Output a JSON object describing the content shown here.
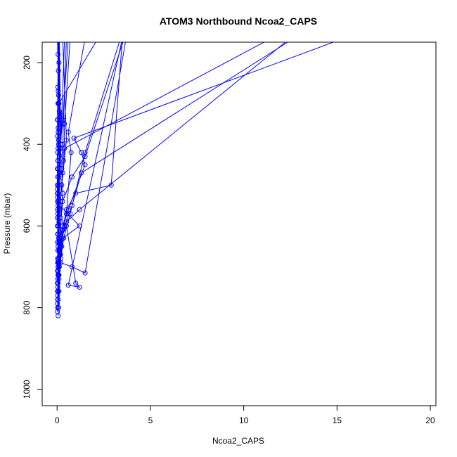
{
  "chart_data": {
    "type": "line",
    "title": "ATOM3 Northbound Ncoa2_CAPS",
    "xlabel": "Ncoa2_CAPS",
    "ylabel": "Pressure (mbar)",
    "xlim": [
      -0.8,
      20.3
    ],
    "ylim": [
      1040,
      150
    ],
    "y_reversed": true,
    "x_ticks": [
      0,
      5,
      10,
      15,
      20
    ],
    "y_ticks": [
      200,
      400,
      600,
      800,
      1000
    ],
    "grid": false,
    "color": "#0000ff",
    "marker": "open-circle",
    "series": [
      {
        "x": [
          0.05,
          0.08,
          0.1,
          0.12,
          0.25,
          0.1,
          0.05,
          0.15,
          0.08,
          0.3,
          0.1,
          2.2
        ],
        "y": [
          820,
          800,
          760,
          700,
          650,
          580,
          520,
          450,
          400,
          350,
          300,
          140
        ]
      },
      {
        "x": [
          0.02,
          0.03,
          0.05,
          0.08,
          0.1,
          0.2,
          0.3,
          0.8,
          1.5,
          3.6
        ],
        "y": [
          810,
          780,
          740,
          690,
          640,
          590,
          540,
          480,
          430,
          140
        ]
      },
      {
        "x": [
          0.03,
          0.05,
          0.1,
          0.18,
          0.3,
          0.5,
          1.0,
          2.9,
          3.5
        ],
        "y": [
          800,
          760,
          720,
          670,
          610,
          560,
          520,
          500,
          140
        ]
      },
      {
        "x": [
          0.02,
          0.05,
          0.1,
          0.2,
          0.5,
          1.2,
          12.5
        ],
        "y": [
          790,
          740,
          690,
          640,
          590,
          560,
          140
        ]
      },
      {
        "x": [
          0.05,
          0.1,
          0.2,
          0.35,
          0.7,
          1.5,
          3.4
        ],
        "y": [
          780,
          730,
          680,
          630,
          570,
          420,
          140
        ]
      },
      {
        "x": [
          0.03,
          0.08,
          0.15,
          0.3,
          1.2,
          0.15,
          0.3,
          0.4,
          11.5
        ],
        "y": [
          770,
          720,
          670,
          630,
          600,
          550,
          470,
          410,
          140
        ]
      },
      {
        "x": [
          0.02,
          0.06,
          0.12,
          0.25,
          0.6,
          1.5,
          1.3,
          0.9,
          15.4
        ],
        "y": [
          760,
          710,
          660,
          610,
          560,
          450,
          420,
          385,
          140
        ]
      },
      {
        "x": [
          0.04,
          0.1,
          0.2,
          0.4,
          0.8,
          1.3,
          12.7
        ],
        "y": [
          750,
          700,
          650,
          600,
          550,
          470,
          140
        ]
      },
      {
        "x": [
          0.02,
          0.05,
          0.1,
          0.5,
          1.0,
          1.2,
          0.6,
          3.5
        ],
        "y": [
          740,
          690,
          640,
          600,
          740,
          750,
          745,
          140
        ]
      },
      {
        "x": [
          0.03,
          0.08,
          0.15,
          0.2,
          0.8,
          1.5,
          3.7
        ],
        "y": [
          730,
          680,
          630,
          690,
          700,
          715,
          140
        ]
      },
      {
        "x": [
          0.05,
          0.1,
          0.3,
          0.5,
          0.75,
          0.6,
          1.5
        ],
        "y": [
          720,
          660,
          600,
          570,
          420,
          370,
          140
        ]
      },
      {
        "x": [
          0.02,
          0.05,
          0.1,
          0.2,
          0.35,
          0.4,
          0.7
        ],
        "y": [
          710,
          650,
          590,
          530,
          440,
          350,
          140
        ]
      },
      {
        "x": [
          0.05,
          0.1,
          0.2,
          0.3,
          0.25,
          0.3,
          0.5
        ],
        "y": [
          700,
          640,
          580,
          520,
          460,
          400,
          140
        ]
      },
      {
        "x": [
          0.03,
          0.08,
          0.12,
          0.25,
          0.5,
          0.3
        ],
        "y": [
          690,
          630,
          570,
          500,
          390,
          140
        ]
      },
      {
        "x": [
          0.02,
          0.05,
          0.1,
          0.15,
          0.2,
          0.12
        ],
        "y": [
          680,
          620,
          560,
          490,
          420,
          140
        ]
      },
      {
        "x": [
          0.04,
          0.06,
          0.08,
          0.12,
          0.2,
          0.25,
          0.4
        ],
        "y": [
          660,
          600,
          540,
          470,
          400,
          330,
          140
        ]
      },
      {
        "x": [
          0.02,
          0.04,
          0.07,
          0.12,
          0.15,
          0.1
        ],
        "y": [
          640,
          570,
          500,
          430,
          360,
          140
        ]
      },
      {
        "x": [
          0.03,
          0.05,
          0.1,
          0.15,
          0.3,
          0.6
        ],
        "y": [
          620,
          550,
          480,
          410,
          340,
          140
        ]
      },
      {
        "x": [
          0.02,
          0.03,
          0.05,
          0.08,
          0.12,
          0.05
        ],
        "y": [
          600,
          530,
          460,
          390,
          320,
          140
        ]
      },
      {
        "x": [
          0.01,
          0.02,
          0.04,
          0.06,
          0.08,
          0.04
        ],
        "y": [
          580,
          510,
          440,
          370,
          300,
          140
        ]
      },
      {
        "x": [
          0.02,
          0.03,
          0.05,
          0.04,
          0.06,
          0.03
        ],
        "y": [
          560,
          480,
          410,
          340,
          270,
          140
        ]
      },
      {
        "x": [
          0.01,
          0.02,
          0.03,
          0.05,
          0.07,
          0.02
        ],
        "y": [
          540,
          460,
          380,
          300,
          220,
          140
        ]
      },
      {
        "x": [
          0.02,
          0.04,
          0.06,
          0.08,
          0.1,
          0.08
        ],
        "y": [
          520,
          440,
          360,
          280,
          200,
          140
        ]
      },
      {
        "x": [
          0.01,
          0.03,
          0.02,
          0.04,
          0.05,
          0.01
        ],
        "y": [
          500,
          420,
          340,
          260,
          180,
          140
        ]
      }
    ]
  }
}
